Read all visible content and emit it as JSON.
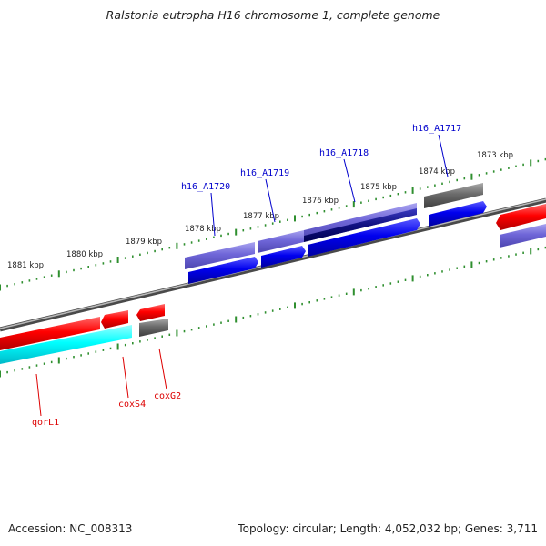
{
  "header": {
    "title": "Ralstonia eutropha H16 chromosome 1, complete genome"
  },
  "footer": {
    "accession": "Accession: NC_008313",
    "summary": "Topology: circular; Length: 4,052,032 bp; Genes: 3,711"
  },
  "colors": {
    "forward_label": "#0000cc",
    "reverse_label": "#dd0000",
    "tick": "#2f8f2f",
    "backbone": "#7a7a7a"
  },
  "scale": {
    "labels": [
      "1881 kbp",
      "1880 kbp",
      "1879 kbp",
      "1878 kbp",
      "1877 kbp",
      "1876 kbp",
      "1875 kbp",
      "1874 kbp",
      "1873 kbp"
    ]
  },
  "genes": {
    "h16_A1720": "h16_A1720",
    "h16_A1719": "h16_A1719",
    "h16_A1718": "h16_A1718",
    "h16_A1717": "h16_A1717",
    "qorL1": "qorL1",
    "coxS4": "coxS4",
    "coxG2": "coxG2"
  }
}
